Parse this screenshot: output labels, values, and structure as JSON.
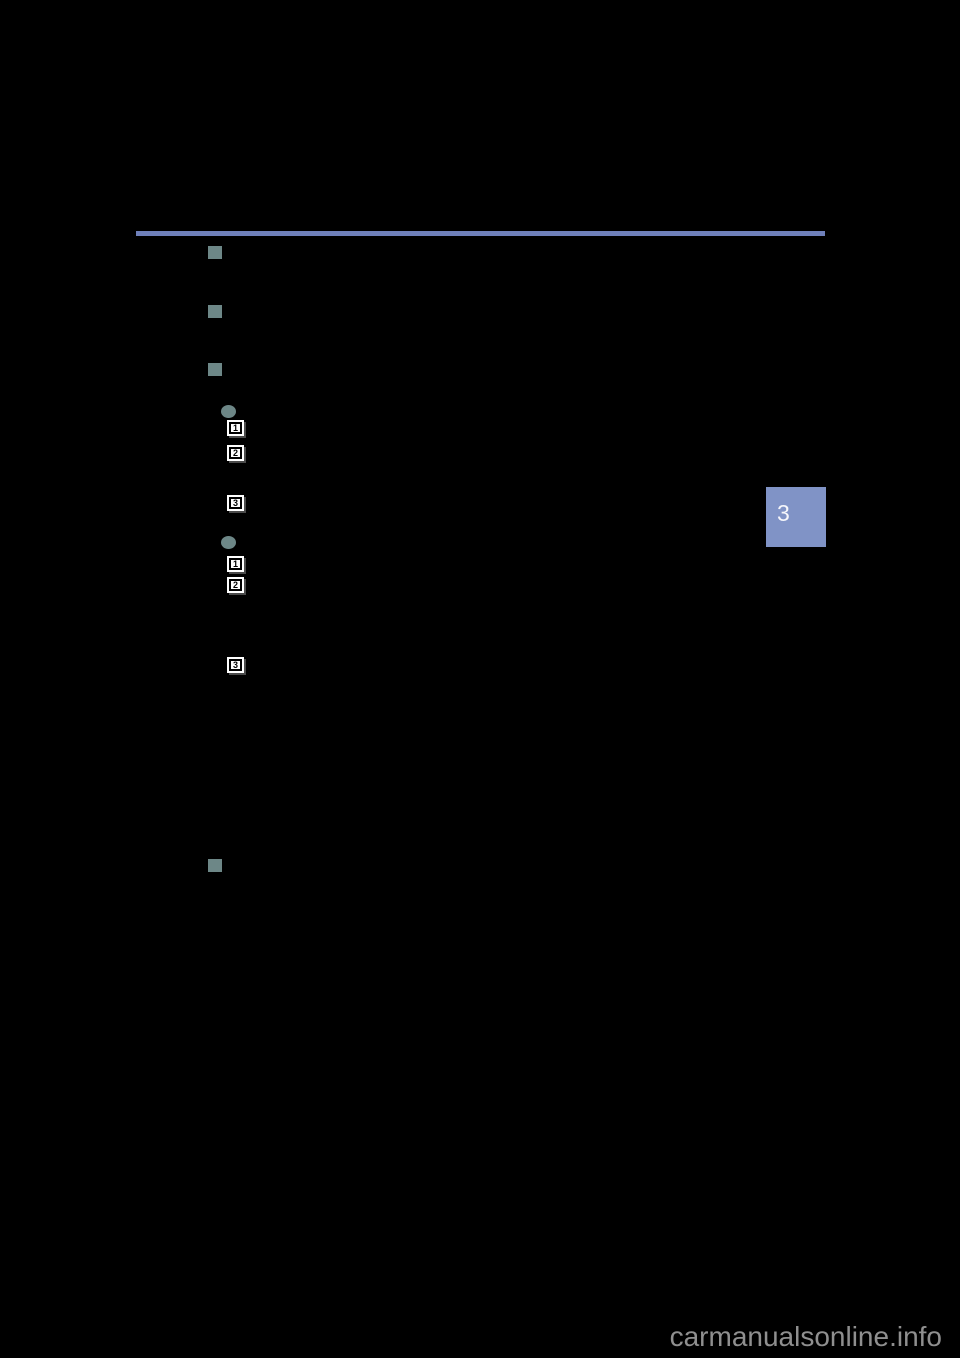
{
  "page": {
    "background": "#000000",
    "description": "owner-manual page rendered dark; only markers visible"
  },
  "colors": {
    "page_bg": "#000000",
    "rule_blue": "#6f80ba",
    "marker_teal": "#6d8787",
    "chapter_blue": "#8093c6",
    "watermark_gray": "#8f8f8f",
    "step_box_bg": "#ffffff",
    "step_box_border": "#000000",
    "step_box_shadow": "#4a4a4a"
  },
  "icons": {
    "section_bullet": "square-bullet-icon",
    "list_bullet": "circle-bullet-icon"
  },
  "chapter_tab": {
    "label": "3"
  },
  "steps": {
    "sequence_a": [
      "1",
      "2",
      "3"
    ],
    "sequence_b": [
      "1",
      "2",
      "3"
    ]
  },
  "watermark": {
    "text": "carmanualsonline.info"
  }
}
